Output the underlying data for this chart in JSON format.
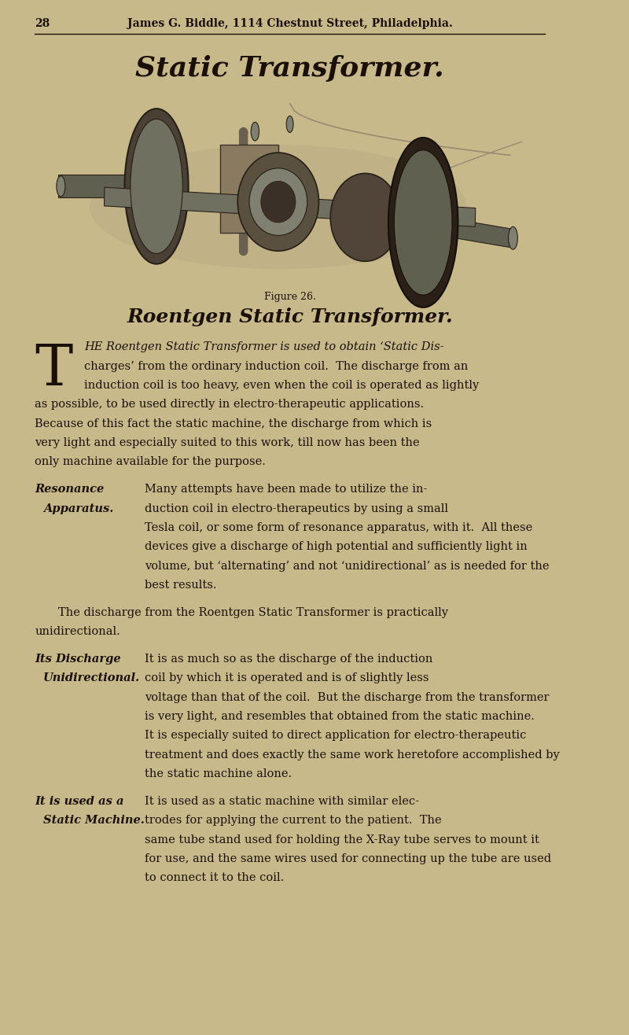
{
  "bg_color": "#c8b98a",
  "page_width": 8.0,
  "page_height": 13.16,
  "dpi": 100,
  "header_number": "28",
  "header_text": "James G. Biddle, 1114 Chestnut Street, Philadelphia.",
  "main_title": "Static Transformer.",
  "figure_caption": "Figure 26.",
  "section_title": "Roentgen Static Transformer.",
  "body_paragraphs": [
    {
      "drop_cap": "T",
      "left_label": null,
      "left_label2": null,
      "indent": true,
      "text": "HE Roentgen Static Transformer is used to obtain ‘Static Dis-\ncharges’ from the ordinary induction coil.  The discharge from an\ninduction coil is too heavy, even when the coil is operated as lightly\nas possible, to be used directly in electro-therapeutic applications.\nBecause of this fact the static machine, the discharge from which is\nvery light and especially suited to this work, till now has been the\nonly machine available for the purpose."
    },
    {
      "drop_cap": null,
      "left_label": "Resonance",
      "left_label2": "Apparatus.",
      "indent": false,
      "text": "Many attempts have been made to utilize the in-\nduction coil in electro-therapeutics by using a small\nTesla coil, or some form of resonance apparatus, with it.  All these\ndevices give a discharge of high potential and sufficiently light in\nvolume, but ‘alternating’ and not ‘unidirectional’ as is needed for the\nbest results."
    },
    {
      "drop_cap": null,
      "left_label": null,
      "left_label2": null,
      "indent": true,
      "text": "The discharge from the Roentgen Static Transformer is practically\nunidirectional."
    },
    {
      "drop_cap": null,
      "left_label": "Its Discharge",
      "left_label2": "Unidirectional.",
      "indent": false,
      "text": "It is as much so as the discharge of the induction\ncoil by which it is operated and is of slightly less\nvoltage than that of the coil.  But the discharge from the transformer\nis very light, and resembles that obtained from the static machine.\nIt is especially suited to direct application for electro-therapeutic\ntreatment and does exactly the same work heretofore accomplished by\nthe static machine alone."
    },
    {
      "drop_cap": null,
      "left_label": "It is used as a",
      "left_label2": "Static Machine.",
      "indent": false,
      "text": "It is used as a static machine with similar elec-\ntrodes for applying the current to the patient.  The\nsame tube stand used for holding the X-Ray tube serves to mount it\nfor use, and the same wires used for connecting up the tube are used\nto connect it to the coil."
    }
  ],
  "text_color": "#1a1008",
  "italic_phrases": [
    "Static Dis-\ncharges",
    "alternating",
    "unidirectional"
  ],
  "image_placeholder_color": "#9a8a6a"
}
